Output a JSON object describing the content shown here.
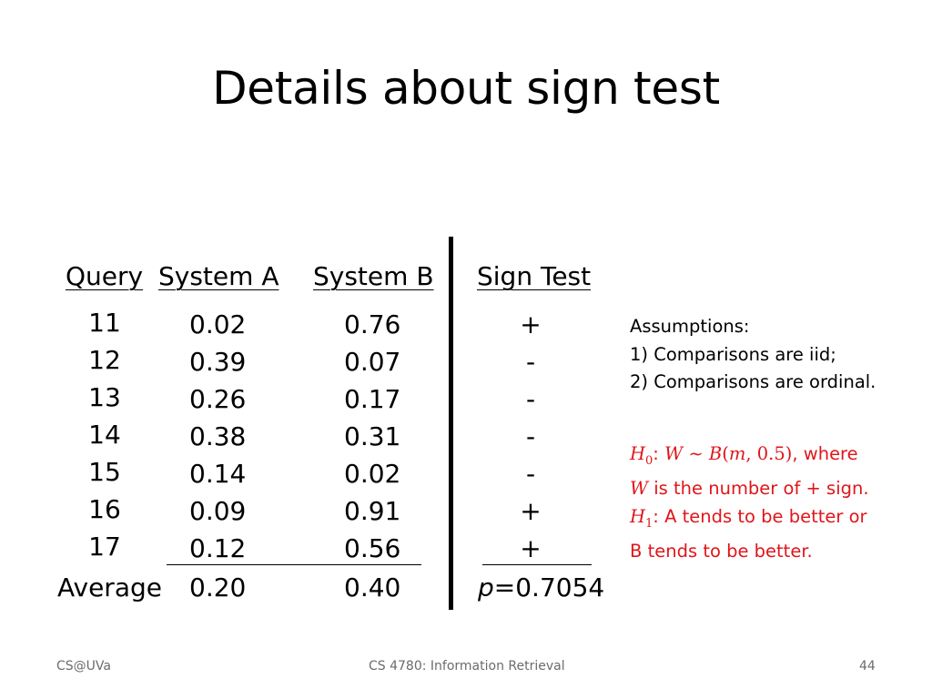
{
  "title": "Details about sign test",
  "table": {
    "headers": {
      "query": "Query",
      "system_a": "System A",
      "system_b": "System B",
      "sign_test": "Sign Test"
    },
    "rows": [
      {
        "query": "11",
        "a": "0.02",
        "b": "0.76",
        "sign": "+"
      },
      {
        "query": "12",
        "a": "0.39",
        "b": "0.07",
        "sign": "-"
      },
      {
        "query": "13",
        "a": "0.26",
        "b": "0.17",
        "sign": "-"
      },
      {
        "query": "14",
        "a": "0.38",
        "b": "0.31",
        "sign": "-"
      },
      {
        "query": "15",
        "a": "0.14",
        "b": "0.02",
        "sign": "-"
      },
      {
        "query": "16",
        "a": "0.09",
        "b": "0.91",
        "sign": "+"
      },
      {
        "query": "17",
        "a": "0.12",
        "b": "0.56",
        "sign": "+"
      }
    ],
    "average": {
      "label": "Average",
      "a": "0.20",
      "b": "0.40",
      "p_symbol": "p",
      "p_value": "=0.7054"
    }
  },
  "assumptions": {
    "heading": "Assumptions:",
    "items": [
      "1) Comparisons are iid;",
      "2) Comparisons are ordinal."
    ]
  },
  "hypotheses": {
    "h0_symbol": "H",
    "h0_sub": "0",
    "h0_colon": ": ",
    "h0_w": "W",
    "h0_sim": " ∼ ",
    "h0_b": "B",
    "h0_args_open": "(",
    "h0_m": "m",
    "h0_args_rest": ", 0.5)",
    "h0_tail": ", where",
    "line2_w": "W",
    "line2_text": " is the number of + sign.",
    "h1_symbol": "H",
    "h1_sub": "1",
    "h1_text": ": A tends to be better or",
    "line4_text": "B tends to be better."
  },
  "footer": {
    "left": "CS@UVa",
    "center": "CS 4780: Information Retrieval",
    "page": "44"
  },
  "colors": {
    "accent_red": "#e0151a",
    "footer_gray": "#6b6b6b"
  }
}
